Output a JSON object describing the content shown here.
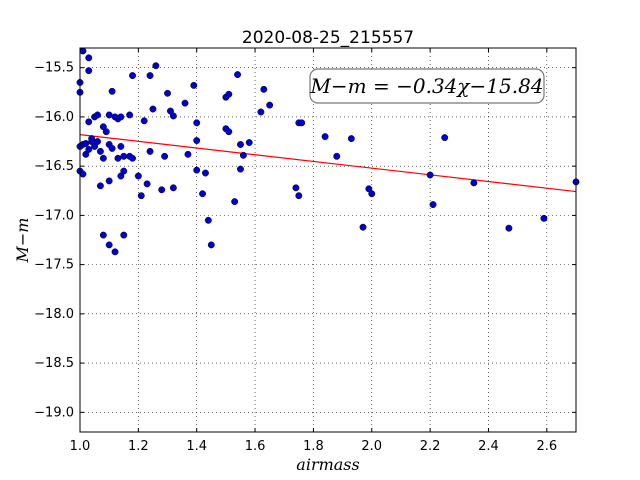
{
  "chart_data": {
    "type": "scatter",
    "title": "2020-08-25_215557",
    "xlabel": "airmass",
    "ylabel": "M−m",
    "xlim": [
      1.0,
      2.7
    ],
    "ylim": [
      -19.2,
      -15.3
    ],
    "y_inverted": true,
    "grid": true,
    "grid_style": "dotted",
    "x_ticks": [
      "1.0",
      "1.2",
      "1.4",
      "1.6",
      "1.8",
      "2.0",
      "2.2",
      "2.4",
      "2.6"
    ],
    "y_ticks": [
      "−15.5",
      "−16.0",
      "−16.5",
      "−17.0",
      "−17.5",
      "−18.0",
      "−18.5",
      "−19.0"
    ],
    "annotation": "M−m = −0.34χ−15.84",
    "fit": {
      "slope": -0.34,
      "intercept": -15.84,
      "color": "#ff0000"
    },
    "point_color": "#0000cc",
    "points": [
      [
        1.0,
        -15.65
      ],
      [
        1.0,
        -15.75
      ],
      [
        1.0,
        -16.3
      ],
      [
        1.0,
        -16.55
      ],
      [
        1.01,
        -16.28
      ],
      [
        1.01,
        -16.58
      ],
      [
        1.01,
        -15.33
      ],
      [
        1.02,
        -16.38
      ],
      [
        1.02,
        -16.27
      ],
      [
        1.03,
        -15.4
      ],
      [
        1.03,
        -15.53
      ],
      [
        1.03,
        -16.05
      ],
      [
        1.03,
        -16.33
      ],
      [
        1.04,
        -16.22
      ],
      [
        1.04,
        -16.25
      ],
      [
        1.05,
        -16.0
      ],
      [
        1.05,
        -16.3
      ],
      [
        1.06,
        -15.98
      ],
      [
        1.06,
        -16.25
      ],
      [
        1.07,
        -16.7
      ],
      [
        1.07,
        -16.35
      ],
      [
        1.08,
        -16.42
      ],
      [
        1.08,
        -17.2
      ],
      [
        1.08,
        -16.1
      ],
      [
        1.09,
        -16.15
      ],
      [
        1.1,
        -15.98
      ],
      [
        1.1,
        -16.28
      ],
      [
        1.1,
        -16.65
      ],
      [
        1.1,
        -17.3
      ],
      [
        1.11,
        -15.74
      ],
      [
        1.11,
        -16.32
      ],
      [
        1.12,
        -17.37
      ],
      [
        1.12,
        -16.0
      ],
      [
        1.13,
        -16.42
      ],
      [
        1.13,
        -16.02
      ],
      [
        1.14,
        -16.0
      ],
      [
        1.14,
        -16.3
      ],
      [
        1.14,
        -16.6
      ],
      [
        1.15,
        -16.4
      ],
      [
        1.15,
        -16.55
      ],
      [
        1.15,
        -17.2
      ],
      [
        1.17,
        -15.98
      ],
      [
        1.17,
        -16.4
      ],
      [
        1.18,
        -16.42
      ],
      [
        1.18,
        -15.58
      ],
      [
        1.2,
        -16.6
      ],
      [
        1.21,
        -16.8
      ],
      [
        1.22,
        -16.04
      ],
      [
        1.23,
        -16.68
      ],
      [
        1.24,
        -16.35
      ],
      [
        1.24,
        -15.58
      ],
      [
        1.25,
        -15.92
      ],
      [
        1.26,
        -15.48
      ],
      [
        1.28,
        -16.74
      ],
      [
        1.29,
        -16.4
      ],
      [
        1.3,
        -15.76
      ],
      [
        1.31,
        -15.94
      ],
      [
        1.32,
        -15.99
      ],
      [
        1.32,
        -16.72
      ],
      [
        1.36,
        -15.86
      ],
      [
        1.37,
        -16.38
      ],
      [
        1.39,
        -15.68
      ],
      [
        1.4,
        -16.06
      ],
      [
        1.4,
        -16.24
      ],
      [
        1.4,
        -16.54
      ],
      [
        1.42,
        -16.78
      ],
      [
        1.43,
        -16.57
      ],
      [
        1.44,
        -17.05
      ],
      [
        1.45,
        -17.3
      ],
      [
        1.5,
        -16.12
      ],
      [
        1.5,
        -15.8
      ],
      [
        1.51,
        -15.77
      ],
      [
        1.51,
        -16.15
      ],
      [
        1.53,
        -16.86
      ],
      [
        1.54,
        -15.57
      ],
      [
        1.55,
        -16.28
      ],
      [
        1.55,
        -16.53
      ],
      [
        1.56,
        -16.39
      ],
      [
        1.58,
        -16.26
      ],
      [
        1.62,
        -15.95
      ],
      [
        1.63,
        -15.72
      ],
      [
        1.65,
        -15.88
      ],
      [
        1.74,
        -16.72
      ],
      [
        1.75,
        -16.06
      ],
      [
        1.75,
        -16.8
      ],
      [
        1.76,
        -16.06
      ],
      [
        1.84,
        -16.2
      ],
      [
        1.88,
        -16.4
      ],
      [
        1.93,
        -16.22
      ],
      [
        1.97,
        -17.12
      ],
      [
        1.99,
        -16.73
      ],
      [
        2.0,
        -16.78
      ],
      [
        2.2,
        -16.59
      ],
      [
        2.21,
        -16.89
      ],
      [
        2.25,
        -16.21
      ],
      [
        2.35,
        -16.67
      ],
      [
        2.47,
        -17.13
      ],
      [
        2.59,
        -17.03
      ],
      [
        2.7,
        -16.66
      ]
    ]
  }
}
